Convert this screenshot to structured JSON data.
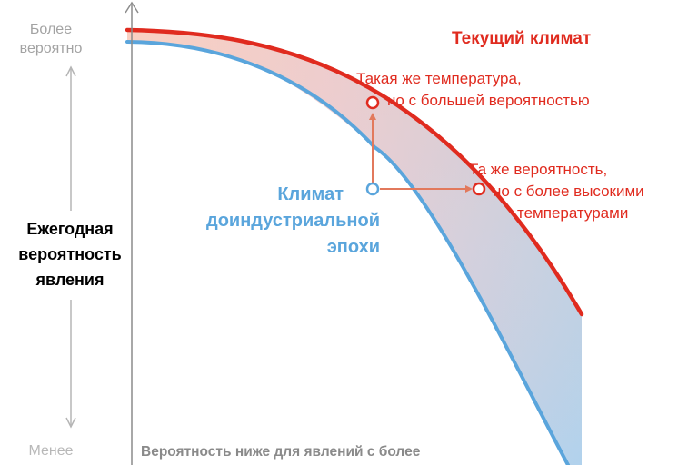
{
  "y_axis": {
    "top_label_line1": "Более",
    "top_label_line2": "вероятно",
    "title_line1": "Ежегодная",
    "title_line2": "вероятность",
    "title_line3": "явления",
    "bottom_label": "Менее"
  },
  "x_axis_note": "Вероятность ниже для явлений с более",
  "curves": {
    "current_title": "Текущий климат",
    "preindustrial_line1": "Климат",
    "preindustrial_line2": "доиндустриальной",
    "preindustrial_line3": "эпохи"
  },
  "annotations": {
    "same_temp_line1": "Такая же температура,",
    "same_temp_line2": "но с большей вероятностью",
    "same_prob_line1": "Та же вероятность,",
    "same_prob_line2": "но с более высокими",
    "same_prob_line3": "температурами"
  },
  "colors": {
    "current": "#e02b1f",
    "preindustrial": "#5aa5dc",
    "arrow": "#e2795c",
    "axis": "#8c8c8c",
    "side_arrow": "#b5b5b5"
  }
}
